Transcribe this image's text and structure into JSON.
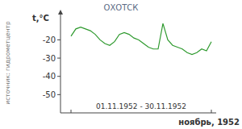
{
  "chart_data": {
    "type": "line",
    "title": "ОХОТСК",
    "y_label": "t,°C",
    "source": "источник: гидрометцентр",
    "x_label": "01.11.1952 - 30.11.1952",
    "caption": "ноябрь, 1952",
    "x": [
      1,
      2,
      3,
      4,
      5,
      6,
      7,
      8,
      9,
      10,
      11,
      12,
      13,
      14,
      15,
      16,
      17,
      18,
      19,
      20,
      21,
      22,
      23,
      24,
      25,
      26,
      27,
      28,
      29,
      30
    ],
    "values": [
      -18,
      -14,
      -13,
      -14,
      -15,
      -17,
      -20,
      -22,
      -23,
      -21,
      -17,
      -16,
      -17,
      -19,
      -20,
      -22,
      -24,
      -25,
      -25,
      -11,
      -20,
      -23,
      -24,
      -25,
      -27,
      -28,
      -27,
      -25,
      -26,
      -21
    ],
    "color": "#2f9a2f",
    "xlim": [
      1,
      30
    ],
    "ylim": [
      -60,
      -7
    ],
    "yticks": [
      -50,
      -40,
      -30,
      -20
    ],
    "tick_labels": "y",
    "grid": false
  }
}
